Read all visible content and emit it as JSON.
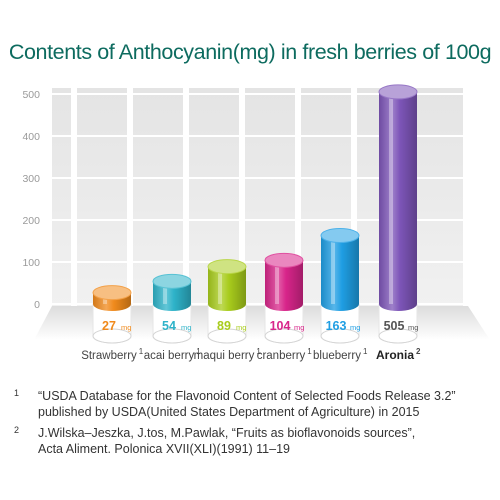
{
  "chart_data": {
    "type": "bar",
    "title": "Contents of Anthocyanin(mg) in fresh berries of 100g",
    "categories": [
      "Strawberry",
      "acai berry",
      "maqui berry",
      "cranberry",
      "blueberry",
      "Aronia"
    ],
    "category_marks": [
      "1",
      "1",
      "1",
      "1",
      "1",
      "2"
    ],
    "values": [
      27,
      54,
      89,
      104,
      163,
      505
    ],
    "value_labels": [
      "27",
      "54",
      "89",
      "104",
      "163",
      "505"
    ],
    "unit": "mg",
    "ylim": [
      0,
      500
    ],
    "yticks": [
      "0",
      "100",
      "200",
      "300",
      "400",
      "500"
    ],
    "ytick_values": [
      0,
      100,
      200,
      300,
      400,
      500
    ],
    "colors": [
      "#f08a1c",
      "#2eb3c9",
      "#a8cc1c",
      "#d8258a",
      "#1f9ee3",
      "#7d55b8"
    ],
    "highlight": "Aronia",
    "grid": true
  },
  "footnotes": [
    {
      "mark": "1",
      "lines": [
        "“USDA Database for the Flavonoid Content of Selected Foods Release 3.2”",
        "published by USDA(United States Department of Agriculture) in 2015"
      ]
    },
    {
      "mark": "2",
      "lines": [
        "J.Wilska–Jeszka, J.tos, M.Pawlak, “Fruits as bioflavonoids sources”,",
        "Acta Aliment. Polonica XVII(XLI)(1991) 11–19"
      ]
    }
  ]
}
